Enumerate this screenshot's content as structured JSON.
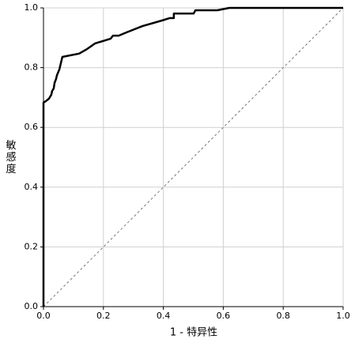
{
  "chart_data": {
    "type": "line",
    "xlabel": "1 - 特异性",
    "ylabel": "敏感度",
    "xlim": [
      0,
      1
    ],
    "ylim": [
      0,
      1
    ],
    "xticks": [
      {
        "value": 0,
        "label": "0.0"
      },
      0.2,
      0.4,
      0.6,
      0.8,
      {
        "value": 1,
        "label": "1.0"
      }
    ],
    "yticks": [
      {
        "value": 0,
        "label": "0.0"
      },
      0.2,
      0.4,
      0.6,
      0.8,
      {
        "value": 1,
        "label": "1.0"
      }
    ],
    "grid": true,
    "series": [
      {
        "color": "#000000",
        "line_style": "solid",
        "x": [
          0,
          0,
          0.008,
          0.018,
          0.026,
          0.029,
          0.034,
          0.037,
          0.042,
          0.045,
          0.053,
          0.058,
          0.063,
          0.119,
          0.145,
          0.172,
          0.224,
          0.232,
          0.251,
          0.277,
          0.33,
          0.396,
          0.422,
          0.435,
          0.435,
          0.501,
          0.507,
          0.58,
          0.62,
          1
        ],
        "values": [
          0,
          0.683,
          0.688,
          0.696,
          0.709,
          0.722,
          0.73,
          0.749,
          0.762,
          0.775,
          0.794,
          0.815,
          0.836,
          0.847,
          0.862,
          0.881,
          0.897,
          0.907,
          0.907,
          0.918,
          0.939,
          0.958,
          0.966,
          0.966,
          0.981,
          0.981,
          0.992,
          0.992,
          1,
          1
        ]
      },
      {
        "color": "#777777",
        "line_style": "dashed",
        "x": [
          0,
          1
        ],
        "values": [
          0,
          1
        ]
      }
    ]
  }
}
